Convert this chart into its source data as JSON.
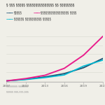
{
  "title": "§ §§§ §§§§§ §§§§§§§§§§§§§§§ §§ §§§§§§§§",
  "legend_row1": [
    {
      "label": "§§§§§",
      "color": "#1b4f72"
    },
    {
      "label": "§§§§§§§§§§§§§§§§§ §§§§",
      "color": "#e91e8c"
    }
  ],
  "legend_row2": [
    {
      "label": "§§§§§§ §§§§§§§§§§ §§§§§",
      "color": "#00bcd4"
    }
  ],
  "x": [
    2007,
    2010,
    2013,
    2016,
    2019,
    2022
  ],
  "series": [
    {
      "name": "dark_blue",
      "color": "#1b4f72",
      "y": [
        100,
        105,
        112,
        122,
        140,
        168
      ],
      "lw": 1.3
    },
    {
      "name": "cyan",
      "color": "#00bcd4",
      "y": [
        100,
        104,
        110,
        118,
        145,
        163
      ],
      "lw": 1.2
    },
    {
      "name": "pink",
      "color": "#e91e8c",
      "y": [
        100,
        107,
        117,
        138,
        178,
        235
      ],
      "lw": 1.4
    }
  ],
  "xlim": [
    2007,
    2022
  ],
  "ylim": [
    97,
    240
  ],
  "source_line1": "§§§§§§§§ §§§§§§§",
  "source_line2": "§§§§§ §§§,§§§,§§§",
  "background_color": "#f0efe8",
  "grid_color": "#d8d8d0",
  "tick_color": "#666666",
  "tick_labels": [
    "2007",
    "2010",
    "2013",
    "2016",
    "2019",
    "2022"
  ]
}
